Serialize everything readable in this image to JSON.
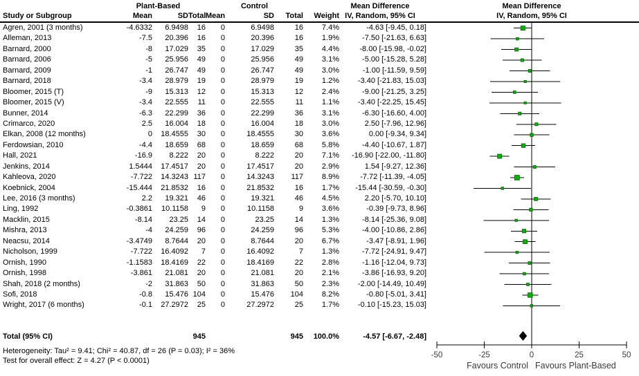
{
  "table": {
    "headers": {
      "group_plant": "Plant-Based",
      "group_control": "Control",
      "study": "Study or Subgroup",
      "mean": "Mean",
      "sd": "SD",
      "total": "Total",
      "weight": "Weight",
      "md_line1": "Mean Difference",
      "md_line2": "IV, Random, 95% CI"
    },
    "rows": [
      {
        "study": "Agren, 2001 (3 months)",
        "pb_mean": "-4.6332",
        "pb_sd": "6.9498",
        "pb_total": "16",
        "c_mean": "0",
        "c_sd": "6.9498",
        "c_total": "16",
        "weight": "7.4%",
        "ci": "-4.63 [-9.45, 0.18]"
      },
      {
        "study": "Alleman, 2013",
        "pb_mean": "-7.5",
        "pb_sd": "20.396",
        "pb_total": "16",
        "c_mean": "0",
        "c_sd": "20.396",
        "c_total": "16",
        "weight": "1.9%",
        "ci": "-7.50 [-21.63, 6.63]"
      },
      {
        "study": "Barnard, 2000",
        "pb_mean": "-8",
        "pb_sd": "17.029",
        "pb_total": "35",
        "c_mean": "0",
        "c_sd": "17.029",
        "c_total": "35",
        "weight": "4.4%",
        "ci": "-8.00 [-15.98, -0.02]"
      },
      {
        "study": "Barnard, 2006",
        "pb_mean": "-5",
        "pb_sd": "25.956",
        "pb_total": "49",
        "c_mean": "0",
        "c_sd": "25.956",
        "c_total": "49",
        "weight": "3.1%",
        "ci": "-5.00 [-15.28, 5.28]"
      },
      {
        "study": "Barnard, 2009",
        "pb_mean": "-1",
        "pb_sd": "26.747",
        "pb_total": "49",
        "c_mean": "0",
        "c_sd": "26.747",
        "c_total": "49",
        "weight": "3.0%",
        "ci": "-1.00 [-11.59, 9.59]"
      },
      {
        "study": "Barnard, 2018",
        "pb_mean": "-3.4",
        "pb_sd": "28.979",
        "pb_total": "19",
        "c_mean": "0",
        "c_sd": "28.979",
        "c_total": "19",
        "weight": "1.2%",
        "ci": "-3.40 [-21.83, 15.03]"
      },
      {
        "study": "Bloomer, 2015 (T)",
        "pb_mean": "-9",
        "pb_sd": "15.313",
        "pb_total": "12",
        "c_mean": "0",
        "c_sd": "15.313",
        "c_total": "12",
        "weight": "2.4%",
        "ci": "-9.00 [-21.25, 3.25]"
      },
      {
        "study": "Bloomer, 2015 (V)",
        "pb_mean": "-3.4",
        "pb_sd": "22.555",
        "pb_total": "11",
        "c_mean": "0",
        "c_sd": "22.555",
        "c_total": "11",
        "weight": "1.1%",
        "ci": "-3.40 [-22.25, 15.45]"
      },
      {
        "study": "Bunner, 2014",
        "pb_mean": "-6.3",
        "pb_sd": "22.299",
        "pb_total": "36",
        "c_mean": "0",
        "c_sd": "22.299",
        "c_total": "36",
        "weight": "3.1%",
        "ci": "-6.30 [-16.60, 4.00]"
      },
      {
        "study": "Crimarco, 2020",
        "pb_mean": "2.5",
        "pb_sd": "16.004",
        "pb_total": "18",
        "c_mean": "0",
        "c_sd": "16.004",
        "c_total": "18",
        "weight": "3.0%",
        "ci": "2.50 [-7.96, 12.96]"
      },
      {
        "study": "Elkan, 2008 (12 months)",
        "pb_mean": "0",
        "pb_sd": "18.4555",
        "pb_total": "30",
        "c_mean": "0",
        "c_sd": "18.4555",
        "c_total": "30",
        "weight": "3.6%",
        "ci": "0.00 [-9.34, 9.34]"
      },
      {
        "study": "Ferdowsian, 2010",
        "pb_mean": "-4.4",
        "pb_sd": "18.659",
        "pb_total": "68",
        "c_mean": "0",
        "c_sd": "18.659",
        "c_total": "68",
        "weight": "5.8%",
        "ci": "-4.40 [-10.67, 1.87]"
      },
      {
        "study": "Hall, 2021",
        "pb_mean": "-16.9",
        "pb_sd": "8.222",
        "pb_total": "20",
        "c_mean": "0",
        "c_sd": "8.222",
        "c_total": "20",
        "weight": "7.1%",
        "ci": "-16.90 [-22.00, -11.80]"
      },
      {
        "study": "Jenkins, 2014",
        "pb_mean": "1.5444",
        "pb_sd": "17.4517",
        "pb_total": "20",
        "c_mean": "0",
        "c_sd": "17.4517",
        "c_total": "20",
        "weight": "2.9%",
        "ci": "1.54 [-9.27, 12.36]"
      },
      {
        "study": "Kahleova, 2020",
        "pb_mean": "-7.722",
        "pb_sd": "14.3243",
        "pb_total": "117",
        "c_mean": "0",
        "c_sd": "14.3243",
        "c_total": "117",
        "weight": "8.9%",
        "ci": "-7.72 [-11.39, -4.05]"
      },
      {
        "study": "Koebnick, 2004",
        "pb_mean": "-15.444",
        "pb_sd": "21.8532",
        "pb_total": "16",
        "c_mean": "0",
        "c_sd": "21.8532",
        "c_total": "16",
        "weight": "1.7%",
        "ci": "-15.44 [-30.59, -0.30]"
      },
      {
        "study": "Lee, 2016 (3 months)",
        "pb_mean": "2.2",
        "pb_sd": "19.321",
        "pb_total": "46",
        "c_mean": "0",
        "c_sd": "19.321",
        "c_total": "46",
        "weight": "4.5%",
        "ci": "2.20 [-5.70, 10.10]"
      },
      {
        "study": "Ling, 1992",
        "pb_mean": "-0.3861",
        "pb_sd": "10.1158",
        "pb_total": "9",
        "c_mean": "0",
        "c_sd": "10.1158",
        "c_total": "9",
        "weight": "3.6%",
        "ci": "-0.39 [-9.73, 8.96]"
      },
      {
        "study": "Macklin, 2015",
        "pb_mean": "-8.14",
        "pb_sd": "23.25",
        "pb_total": "14",
        "c_mean": "0",
        "c_sd": "23.25",
        "c_total": "14",
        "weight": "1.3%",
        "ci": "-8.14 [-25.36, 9.08]"
      },
      {
        "study": "Mishra, 2013",
        "pb_mean": "-4",
        "pb_sd": "24.259",
        "pb_total": "96",
        "c_mean": "0",
        "c_sd": "24.259",
        "c_total": "96",
        "weight": "5.3%",
        "ci": "-4.00 [-10.86, 2.86]"
      },
      {
        "study": "Neacsu, 2014",
        "pb_mean": "-3.4749",
        "pb_sd": "8.7644",
        "pb_total": "20",
        "c_mean": "0",
        "c_sd": "8.7644",
        "c_total": "20",
        "weight": "6.7%",
        "ci": "-3.47 [-8.91, 1.96]"
      },
      {
        "study": "Nicholson, 1999",
        "pb_mean": "-7.722",
        "pb_sd": "16.4092",
        "pb_total": "7",
        "c_mean": "0",
        "c_sd": "16.4092",
        "c_total": "7",
        "weight": "1.3%",
        "ci": "-7.72 [-24.91, 9.47]"
      },
      {
        "study": "Ornish, 1990",
        "pb_mean": "-1.1583",
        "pb_sd": "18.4169",
        "pb_total": "22",
        "c_mean": "0",
        "c_sd": "18.4169",
        "c_total": "22",
        "weight": "2.8%",
        "ci": "-1.16 [-12.04, 9.73]"
      },
      {
        "study": "Ornish, 1998",
        "pb_mean": "-3.861",
        "pb_sd": "21.081",
        "pb_total": "20",
        "c_mean": "0",
        "c_sd": "21.081",
        "c_total": "20",
        "weight": "2.1%",
        "ci": "-3.86 [-16.93, 9.20]"
      },
      {
        "study": "Shah, 2018 (2 months)",
        "pb_mean": "-2",
        "pb_sd": "31.863",
        "pb_total": "50",
        "c_mean": "0",
        "c_sd": "31.863",
        "c_total": "50",
        "weight": "2.3%",
        "ci": "-2.00 [-14.49, 10.49]"
      },
      {
        "study": "Sofi, 2018",
        "pb_mean": "-0.8",
        "pb_sd": "15.476",
        "pb_total": "104",
        "c_mean": "0",
        "c_sd": "15.476",
        "c_total": "104",
        "weight": "8.2%",
        "ci": "-0.80 [-5.01, 3.41]"
      },
      {
        "study": "Wright, 2017 (6 months)",
        "pb_mean": "-0.1",
        "pb_sd": "27.2972",
        "pb_total": "25",
        "c_mean": "0",
        "c_sd": "27.2972",
        "c_total": "25",
        "weight": "1.7%",
        "ci": "-0.10 [-15.23, 15.03]"
      }
    ],
    "total_row": {
      "study": "Total (95% CI)",
      "pb_total": "945",
      "c_total": "945",
      "weight": "100.0%",
      "ci": "-4.57 [-6.67, -2.48]"
    },
    "heterogeneity": "Heterogeneity: Tau² = 9.41; Chi² = 40.87, df = 26 (P = 0.03); I² = 36%",
    "overall_effect": "Test for overall effect: Z = 4.27 (P < 0.0001)"
  },
  "chart_data": {
    "type": "forest",
    "effect_measure": "Mean Difference, IV, Random, 95% CI",
    "xlim": [
      -50,
      50
    ],
    "x_ticks": [
      -50,
      -25,
      0,
      25,
      50
    ],
    "x_label_left": "Favours Control",
    "x_label_right": "Favours Plant-Based",
    "marker_color": "#00b400",
    "marker_border": "#006400",
    "ci_line_color": "#000000",
    "diamond_color": "#000000",
    "studies": [
      {
        "name": "Agren, 2001 (3 months)",
        "estimate": -4.63,
        "ci_low": -9.45,
        "ci_high": 0.18,
        "weight_pct": 7.4
      },
      {
        "name": "Alleman, 2013",
        "estimate": -7.5,
        "ci_low": -21.63,
        "ci_high": 6.63,
        "weight_pct": 1.9
      },
      {
        "name": "Barnard, 2000",
        "estimate": -8,
        "ci_low": -15.98,
        "ci_high": -0.02,
        "weight_pct": 4.4
      },
      {
        "name": "Barnard, 2006",
        "estimate": -5,
        "ci_low": -15.28,
        "ci_high": 5.28,
        "weight_pct": 3.1
      },
      {
        "name": "Barnard, 2009",
        "estimate": -1,
        "ci_low": -11.59,
        "ci_high": 9.59,
        "weight_pct": 3.0
      },
      {
        "name": "Barnard, 2018",
        "estimate": -3.4,
        "ci_low": -21.83,
        "ci_high": 15.03,
        "weight_pct": 1.2
      },
      {
        "name": "Bloomer, 2015 (T)",
        "estimate": -9,
        "ci_low": -21.25,
        "ci_high": 3.25,
        "weight_pct": 2.4
      },
      {
        "name": "Bloomer, 2015 (V)",
        "estimate": -3.4,
        "ci_low": -22.25,
        "ci_high": 15.45,
        "weight_pct": 1.1
      },
      {
        "name": "Bunner, 2014",
        "estimate": -6.3,
        "ci_low": -16.6,
        "ci_high": 4.0,
        "weight_pct": 3.1
      },
      {
        "name": "Crimarco, 2020",
        "estimate": 2.5,
        "ci_low": -7.96,
        "ci_high": 12.96,
        "weight_pct": 3.0
      },
      {
        "name": "Elkan, 2008 (12 months)",
        "estimate": 0,
        "ci_low": -9.34,
        "ci_high": 9.34,
        "weight_pct": 3.6
      },
      {
        "name": "Ferdowsian, 2010",
        "estimate": -4.4,
        "ci_low": -10.67,
        "ci_high": 1.87,
        "weight_pct": 5.8
      },
      {
        "name": "Hall, 2021",
        "estimate": -16.9,
        "ci_low": -22.0,
        "ci_high": -11.8,
        "weight_pct": 7.1
      },
      {
        "name": "Jenkins, 2014",
        "estimate": 1.54,
        "ci_low": -9.27,
        "ci_high": 12.36,
        "weight_pct": 2.9
      },
      {
        "name": "Kahleova, 2020",
        "estimate": -7.72,
        "ci_low": -11.39,
        "ci_high": -4.05,
        "weight_pct": 8.9
      },
      {
        "name": "Koebnick, 2004",
        "estimate": -15.44,
        "ci_low": -30.59,
        "ci_high": -0.3,
        "weight_pct": 1.7
      },
      {
        "name": "Lee, 2016 (3 months)",
        "estimate": 2.2,
        "ci_low": -5.7,
        "ci_high": 10.1,
        "weight_pct": 4.5
      },
      {
        "name": "Ling, 1992",
        "estimate": -0.39,
        "ci_low": -9.73,
        "ci_high": 8.96,
        "weight_pct": 3.6
      },
      {
        "name": "Macklin, 2015",
        "estimate": -8.14,
        "ci_low": -25.36,
        "ci_high": 9.08,
        "weight_pct": 1.3
      },
      {
        "name": "Mishra, 2013",
        "estimate": -4,
        "ci_low": -10.86,
        "ci_high": 2.86,
        "weight_pct": 5.3
      },
      {
        "name": "Neacsu, 2014",
        "estimate": -3.47,
        "ci_low": -8.91,
        "ci_high": 1.96,
        "weight_pct": 6.7
      },
      {
        "name": "Nicholson, 1999",
        "estimate": -7.72,
        "ci_low": -24.91,
        "ci_high": 9.47,
        "weight_pct": 1.3
      },
      {
        "name": "Ornish, 1990",
        "estimate": -1.16,
        "ci_low": -12.04,
        "ci_high": 9.73,
        "weight_pct": 2.8
      },
      {
        "name": "Ornish, 1998",
        "estimate": -3.86,
        "ci_low": -16.93,
        "ci_high": 9.2,
        "weight_pct": 2.1
      },
      {
        "name": "Shah, 2018 (2 months)",
        "estimate": -2,
        "ci_low": -14.49,
        "ci_high": 10.49,
        "weight_pct": 2.3
      },
      {
        "name": "Sofi, 2018",
        "estimate": -0.8,
        "ci_low": -5.01,
        "ci_high": 3.41,
        "weight_pct": 8.2
      },
      {
        "name": "Wright, 2017 (6 months)",
        "estimate": -0.1,
        "ci_low": -15.23,
        "ci_high": 15.03,
        "weight_pct": 1.7
      }
    ],
    "total": {
      "label": "Total (95% CI)",
      "estimate": -4.57,
      "ci_low": -6.67,
      "ci_high": -2.48,
      "weight_pct": 100.0
    }
  }
}
